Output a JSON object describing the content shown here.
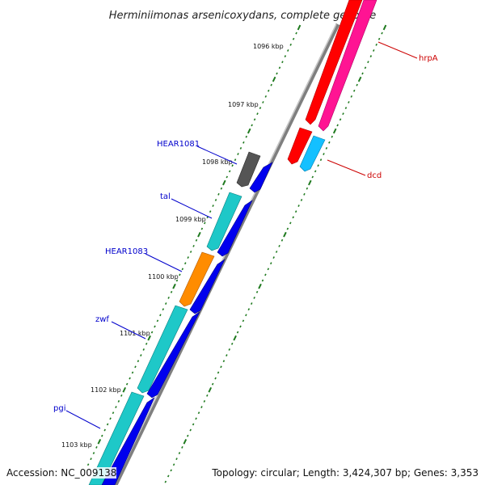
{
  "title": "Herminiimonas arsenicoxydans, complete genome",
  "footer": {
    "accession": "Accession: NC_009138",
    "topology": "Topology: circular; Length: 3,424,307 bp; Genes: 3,353"
  },
  "tick_labels": [
    "1096 kbp",
    "1097 kbp",
    "1098 kbp",
    "1099 kbp",
    "1100 kbp",
    "1101 kbp",
    "1102 kbp",
    "1103 kbp"
  ],
  "gene_labels_left": [
    "HEAR1081",
    "tal",
    "HEAR1083",
    "zwf",
    "pgi"
  ],
  "gene_labels_right": [
    "hrpA",
    "dcd"
  ],
  "colors": {
    "backbone": "#7a7a7a",
    "tick_green": "#1f7a1f",
    "cyan": "#1ec8c8",
    "blue": "#0000ee",
    "orange": "#ff8c00",
    "gray_gene": "#555555",
    "red": "#ff0000",
    "pink": "#ff1493",
    "sky": "#14c0ff",
    "label_blue": "#0000cc",
    "label_red": "#cc0000"
  }
}
